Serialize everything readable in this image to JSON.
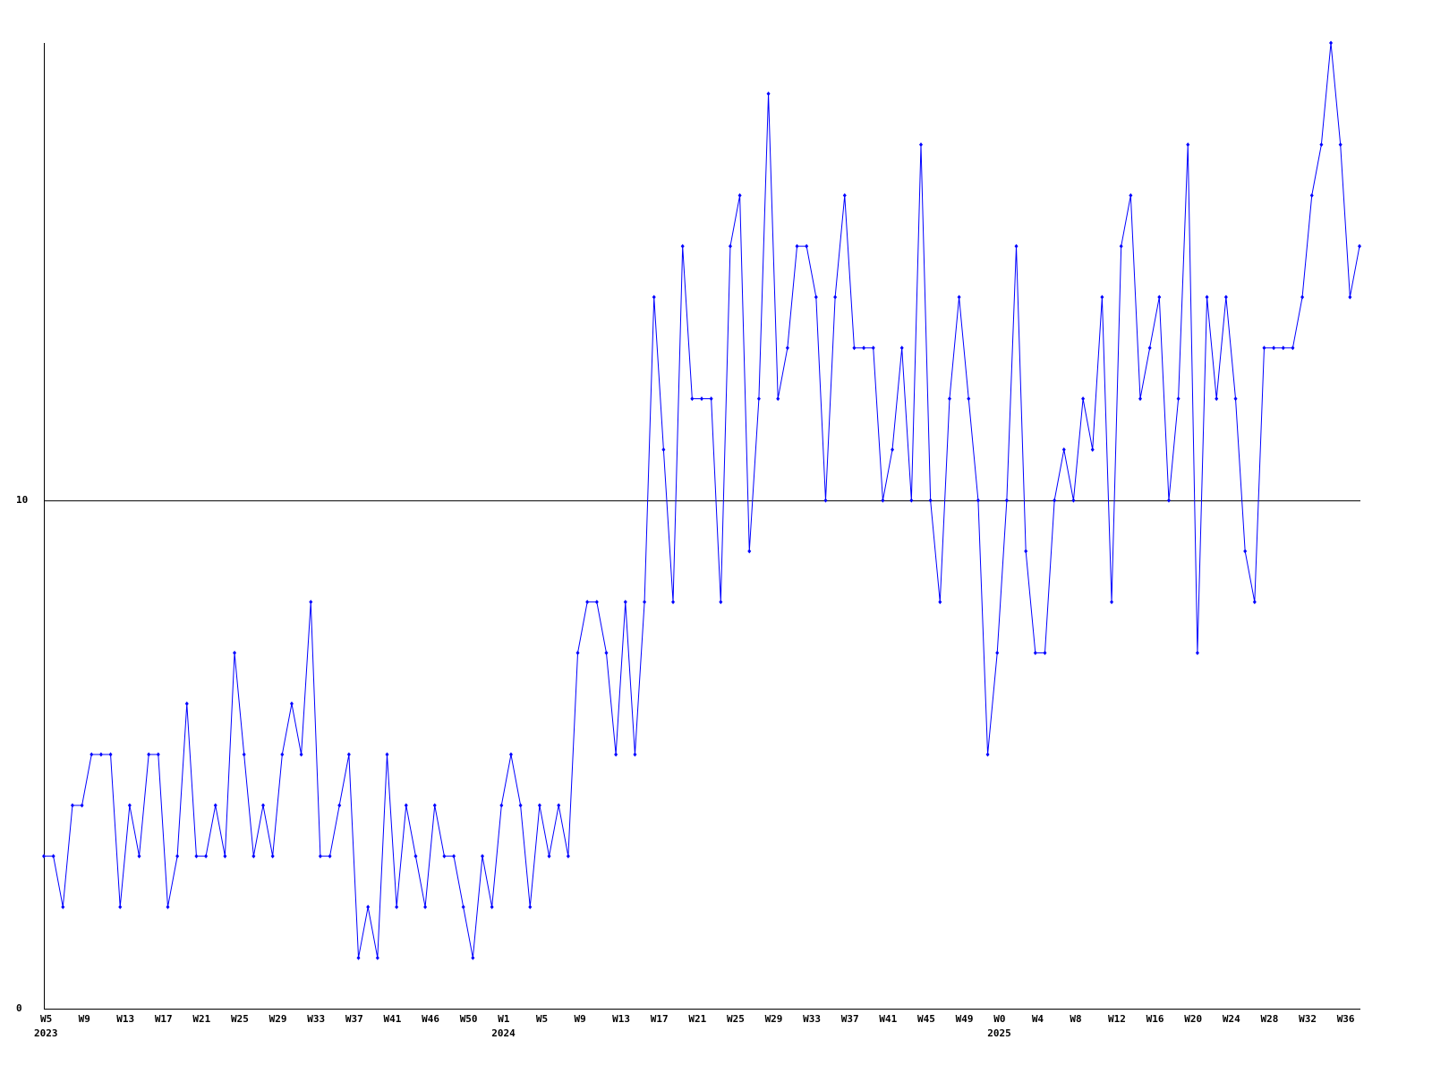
{
  "chart_data": {
    "type": "line",
    "color": "#0000ff",
    "categories": [
      "W5",
      null,
      null,
      null,
      "W9",
      null,
      null,
      null,
      "W13",
      null,
      null,
      null,
      "W17",
      null,
      null,
      null,
      "W21",
      null,
      null,
      null,
      "W25",
      null,
      null,
      null,
      "W29",
      null,
      null,
      null,
      "W33",
      null,
      null,
      null,
      "W37",
      null,
      null,
      null,
      "W41",
      null,
      null,
      null,
      "W46",
      null,
      null,
      null,
      "W50",
      null,
      null,
      null,
      "W1",
      null,
      null,
      null,
      "W5",
      null,
      null,
      null,
      "W9",
      null,
      null,
      null,
      "W13",
      null,
      null,
      null,
      "W17",
      null,
      null,
      null,
      "W21",
      null,
      null,
      null,
      "W25",
      null,
      null,
      null,
      "W29",
      null,
      null,
      null,
      "W33",
      null,
      null,
      null,
      "W37",
      null,
      null,
      null,
      "W41",
      null,
      null,
      null,
      "W45",
      null,
      null,
      null,
      "W49",
      null,
      null,
      null,
      "W0",
      null,
      null,
      null,
      "W4",
      null,
      null,
      null,
      "W8",
      null,
      null,
      null,
      "W12",
      null,
      null,
      null,
      "W16",
      null,
      null,
      null,
      "W20",
      null,
      null,
      null,
      "W24",
      null,
      null,
      null,
      "W28",
      null,
      null,
      null,
      "W32",
      null,
      null,
      null,
      "W36",
      null,
      null
    ],
    "category_years": [
      "2023",
      null,
      null,
      null,
      null,
      null,
      null,
      null,
      null,
      null,
      null,
      null,
      null,
      null,
      null,
      null,
      null,
      null,
      null,
      null,
      null,
      null,
      null,
      null,
      null,
      null,
      null,
      null,
      null,
      null,
      null,
      null,
      null,
      null,
      null,
      null,
      null,
      null,
      null,
      null,
      null,
      null,
      null,
      null,
      null,
      null,
      null,
      null,
      "2024",
      null,
      null,
      null,
      null,
      null,
      null,
      null,
      null,
      null,
      null,
      null,
      null,
      null,
      null,
      null,
      null,
      null,
      null,
      null,
      null,
      null,
      null,
      null,
      null,
      null,
      null,
      null,
      null,
      null,
      null,
      null,
      null,
      null,
      null,
      null,
      null,
      null,
      null,
      null,
      null,
      null,
      null,
      null,
      null,
      null,
      null,
      null,
      null,
      null,
      null,
      null,
      "2025",
      null,
      null,
      null,
      null,
      null,
      null,
      null,
      null,
      null,
      null,
      null,
      null,
      null,
      null,
      null,
      null,
      null,
      null,
      null,
      null,
      null,
      null,
      null,
      null,
      null,
      null,
      null,
      null,
      null,
      null,
      null,
      null,
      null,
      null,
      null,
      null,
      null,
      null
    ],
    "values": [
      3,
      3,
      2,
      4,
      4,
      5,
      5,
      5,
      2,
      4,
      3,
      5,
      5,
      2,
      3,
      6,
      3,
      3,
      4,
      3,
      7,
      5,
      3,
      4,
      3,
      5,
      6,
      5,
      8,
      3,
      3,
      4,
      5,
      1,
      2,
      1,
      5,
      2,
      4,
      3,
      2,
      4,
      3,
      3,
      2,
      1,
      3,
      2,
      4,
      5,
      4,
      2,
      4,
      3,
      4,
      3,
      7,
      8,
      8,
      7,
      5,
      8,
      5,
      8,
      14,
      11,
      8,
      15,
      12,
      12,
      12,
      8,
      15,
      16,
      9,
      12,
      18,
      12,
      13,
      15,
      15,
      14,
      10,
      14,
      16,
      13,
      13,
      13,
      10,
      11,
      13,
      10,
      17,
      10,
      8,
      12,
      14,
      12,
      10,
      5,
      7,
      10,
      15,
      9,
      7,
      7,
      10,
      11,
      10,
      12,
      11,
      14,
      8,
      15,
      16,
      12,
      13,
      14,
      10,
      12,
      17,
      7,
      14,
      12,
      14,
      12,
      9,
      8,
      13,
      13,
      13,
      13,
      14,
      16,
      17,
      19,
      17,
      14,
      15
    ],
    "ylim": [
      0,
      19
    ],
    "yticks": [
      0,
      10
    ],
    "grid": true
  }
}
